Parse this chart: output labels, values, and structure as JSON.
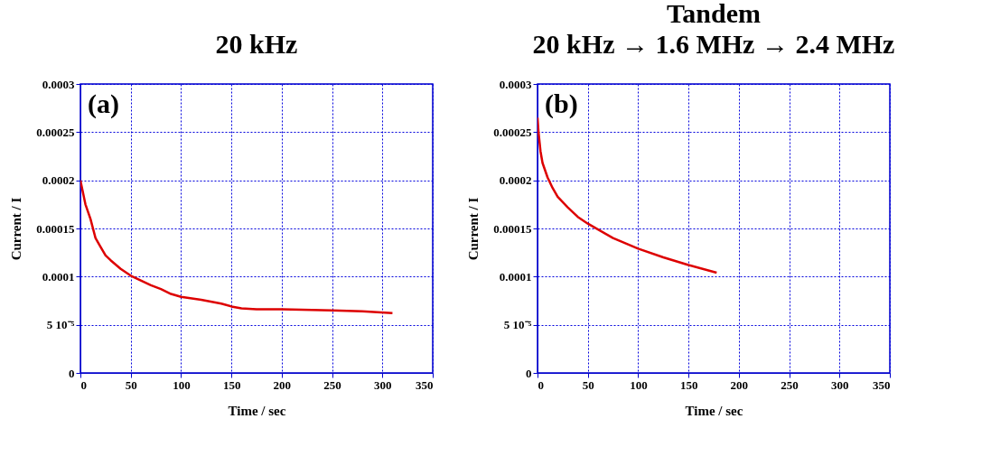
{
  "chart_data": [
    {
      "type": "line",
      "title": "20 kHz",
      "xlabel": "Time / sec",
      "ylabel": "Current / I",
      "annotations": [
        "(a)"
      ],
      "grid": true,
      "line_style": "solid",
      "marker": "none",
      "xlim": [
        0,
        350
      ],
      "xticks": [
        0,
        50,
        100,
        150,
        200,
        250,
        300,
        350
      ],
      "ylim": [
        0,
        0.0003
      ],
      "yticks": [
        0,
        {
          "value": 5e-05,
          "label": "5 10⁻⁵"
        },
        0.0001,
        0.00015,
        0.0002,
        0.00025,
        0.0003
      ],
      "series": [
        {
          "color": "#dd0000",
          "x": [
            0,
            5,
            10,
            15,
            20,
            25,
            30,
            40,
            50,
            60,
            70,
            80,
            90,
            100,
            120,
            140,
            150,
            160,
            175,
            200,
            250,
            280,
            310
          ],
          "values": [
            0.0002,
            0.000175,
            0.00016,
            0.00014,
            0.000131,
            0.000122,
            0.000117,
            0.000108,
            0.000101,
            9.6e-05,
            9.1e-05,
            8.7e-05,
            8.2e-05,
            7.9e-05,
            7.6e-05,
            7.2e-05,
            6.9e-05,
            6.7e-05,
            6.6e-05,
            6.6e-05,
            6.5e-05,
            6.4e-05,
            6.2e-05
          ]
        }
      ]
    },
    {
      "type": "line",
      "title": "Tandem",
      "subtitle": "20 kHz → 1.6 MHz → 2.4 MHz",
      "xlabel": "Time / sec",
      "ylabel": "Current / I",
      "annotations": [
        "(b)"
      ],
      "grid": true,
      "line_style": "solid",
      "marker": "none",
      "xlim": [
        0,
        350
      ],
      "xticks": [
        0,
        50,
        100,
        150,
        200,
        250,
        300,
        350
      ],
      "ylim": [
        0,
        0.0003
      ],
      "yticks": [
        0,
        {
          "value": 5e-05,
          "label": "5 10⁻⁵"
        },
        0.0001,
        0.00015,
        0.0002,
        0.00025,
        0.0003
      ],
      "series": [
        {
          "color": "#dd0000",
          "x": [
            0,
            1,
            3,
            5,
            10,
            15,
            20,
            30,
            40,
            50,
            75,
            100,
            125,
            150,
            178
          ],
          "values": [
            0.000265,
            0.00025,
            0.00023,
            0.000218,
            0.000203,
            0.000192,
            0.000183,
            0.000172,
            0.000162,
            0.000155,
            0.00014,
            0.000129,
            0.00012,
            0.000112,
            0.000104
          ]
        }
      ]
    }
  ]
}
